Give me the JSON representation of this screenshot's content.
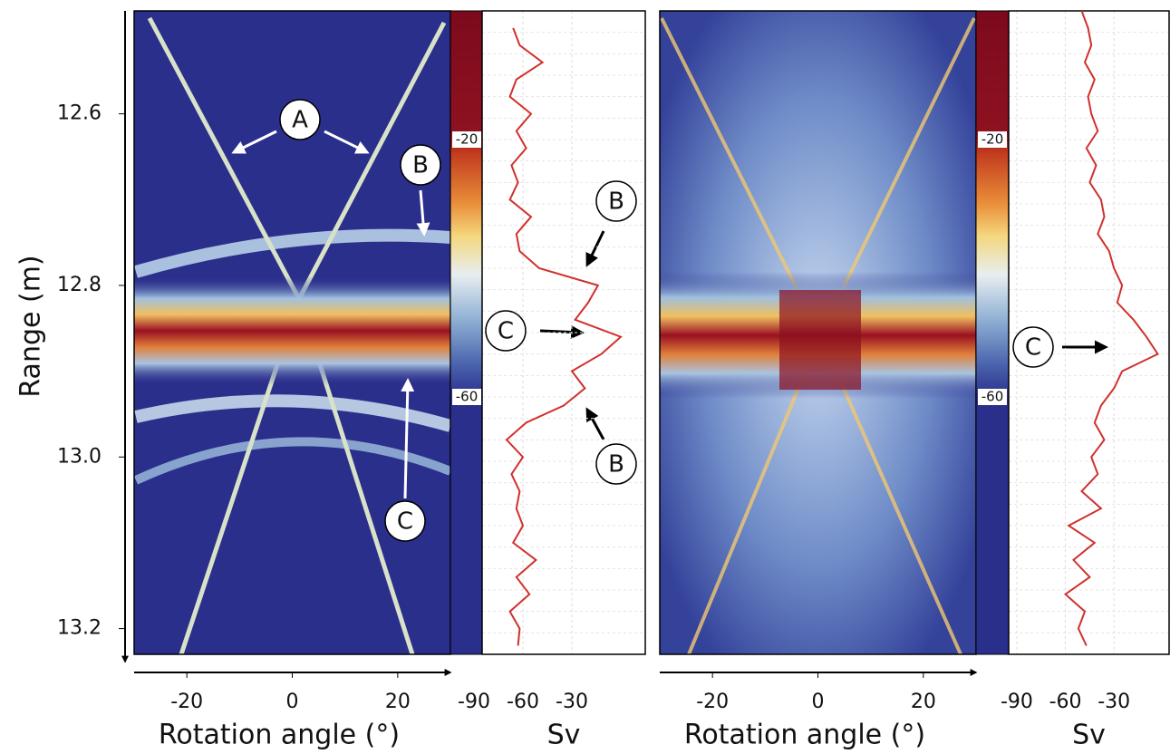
{
  "chart_data": [
    {
      "type": "heatmap",
      "xlabel": "Rotation angle (°)",
      "xlim": [
        -30,
        30
      ],
      "xticks": [
        -20,
        0,
        20
      ],
      "ylabel": "Range (m)",
      "ylim": [
        12.48,
        13.23
      ],
      "yticks": [
        12.6,
        12.8,
        {
          "value": 13,
          "label": "13.0"
        },
        13.2
      ],
      "colorbar": {
        "lim": [
          -100,
          0
        ],
        "ticks": [
          -20,
          -60
        ]
      },
      "profile": {
        "xlabel": "Sv",
        "xlim": [
          -85,
          15
        ],
        "xticks": [
          -90,
          -60,
          -30
        ],
        "color": "#d0312d",
        "range": [
          12.5,
          12.52,
          12.54,
          12.56,
          12.58,
          12.6,
          12.62,
          12.64,
          12.66,
          12.68,
          12.7,
          12.72,
          12.74,
          12.76,
          12.78,
          12.8,
          12.82,
          12.84,
          12.86,
          12.88,
          12.9,
          12.92,
          12.94,
          12.96,
          12.98,
          13.0,
          13.02,
          13.04,
          13.06,
          13.08,
          13.1,
          13.12,
          13.14,
          13.16,
          13.18,
          13.2,
          13.22
        ],
        "values": [
          -66,
          -62,
          -48,
          -64,
          -68,
          -55,
          -64,
          -58,
          -67,
          -63,
          -68,
          -55,
          -64,
          -62,
          -50,
          -14,
          -20,
          -28,
          0,
          -12,
          -30,
          -22,
          -35,
          -58,
          -70,
          -60,
          -67,
          -62,
          -64,
          -60,
          -66,
          -52,
          -64,
          -56,
          -68,
          -62,
          -63
        ]
      },
      "annotations": [
        "A",
        "B",
        "C",
        "B",
        "C",
        "B"
      ]
    },
    {
      "type": "heatmap",
      "xlabel": "Rotation angle (°)",
      "xlim": [
        -30,
        30
      ],
      "xticks": [
        -20,
        0,
        20
      ],
      "ylim": [
        12.48,
        13.23
      ],
      "colorbar": {
        "lim": [
          -100,
          0
        ],
        "ticks": [
          -20,
          -60
        ]
      },
      "profile": {
        "xlabel": "Sv",
        "xlim": [
          -95,
          4
        ],
        "xticks": [
          -90,
          -60,
          -30
        ],
        "color": "#d0312d",
        "range": [
          12.48,
          12.5,
          12.52,
          12.54,
          12.56,
          12.58,
          12.6,
          12.62,
          12.64,
          12.66,
          12.68,
          12.7,
          12.72,
          12.74,
          12.76,
          12.78,
          12.8,
          12.82,
          12.84,
          12.86,
          12.88,
          12.9,
          12.92,
          12.94,
          12.96,
          12.98,
          13.0,
          13.02,
          13.04,
          13.06,
          13.08,
          13.1,
          13.12,
          13.14,
          13.16,
          13.18,
          13.2,
          13.22
        ],
        "values": [
          -50,
          -46,
          -44,
          -48,
          -42,
          -46,
          -44,
          -40,
          -47,
          -41,
          -45,
          -38,
          -36,
          -40,
          -33,
          -30,
          -25,
          -28,
          -18,
          -10,
          -3,
          -25,
          -30,
          -38,
          -42,
          -36,
          -44,
          -40,
          -50,
          -38,
          -58,
          -42,
          -55,
          -45,
          -60,
          -48,
          -52,
          -47
        ]
      },
      "annotations": [
        "C"
      ]
    }
  ]
}
